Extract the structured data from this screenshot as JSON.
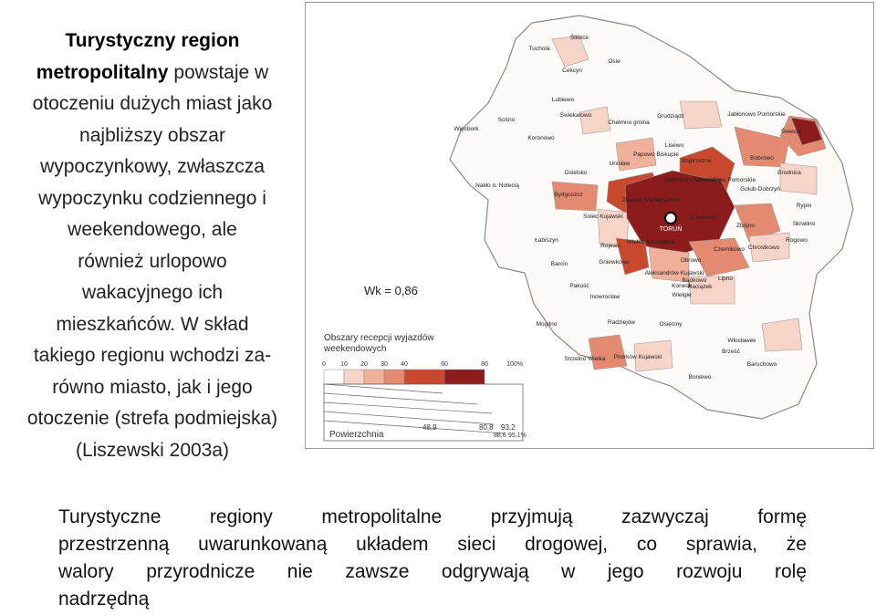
{
  "left_text": {
    "bold": [
      "Turystyczny region",
      "metropolitalny"
    ],
    "lines": [
      " powstaje w",
      "otoczeniu dużych miast jako",
      "najbliższy obszar",
      "wypoczynkowy, zwłaszcza",
      "wypoczynku codziennego i",
      "weekendowego, ale",
      "również urlopowo",
      "wakacyjnego ich",
      "mieszkańców. W skład",
      "takiego regionu wchodzi za-",
      "równo miasto, jak i jego",
      "otoczenie (strefa podmiejska)",
      "(Liszewski 2003a)"
    ]
  },
  "map": {
    "wk_label": "Wk = 0,86",
    "legend_title": [
      "Obszary recepcji wyjazdów",
      "weekendowych"
    ],
    "legend_ticks": [
      "0",
      "10",
      "20",
      "30",
      "40",
      "60",
      "80",
      "100%"
    ],
    "legend_colors": [
      "#ffffff",
      "#f6d5c8",
      "#f0b09a",
      "#e48a70",
      "#c9492f",
      "#8c1c1c"
    ],
    "legend_values": [
      "48,9",
      "80,8",
      "93,2",
      "88,6",
      "95,1%"
    ],
    "legend_bottom": "Powierzchnia",
    "city_label": "TORUŃ",
    "places": [
      "Śliwice",
      "Tuchola",
      "Osie",
      "Cekcyn",
      "Lubiewo",
      "Świekatowo",
      "Sośno",
      "Więcbork",
      "Koronowo",
      "Chełmno gmina",
      "Grudziądz",
      "Jabłonowo Pomorskie",
      "Świecie",
      "Bobrowo",
      "Brodnica",
      "Lisewo",
      "Papowo Biskupie",
      "Unisław",
      "Wąbrzeźno",
      "Osielsko",
      "Dąbrowa Chełmińska",
      "Kowalewo Pomorskie",
      "Golub-Dobrzyń",
      "Nakło n. Notecią",
      "Bydgoszcz",
      "Zławieś Wielka",
      "Łysomice",
      "Rypin",
      "Solec Kujawski",
      "Ciechocin",
      "Zbójno",
      "Skrwilno",
      "Łabiszyn",
      "Rojewo",
      "Wielka Nieszawka",
      "Czernikowo",
      "Rogowo",
      "Chrostkowo",
      "Gniewkowo",
      "Obrowo",
      "Barcin",
      "Aleksandrów Kujawski",
      "Bądkowo",
      "Raciążek",
      "Pakość",
      "Koneck",
      "Lipno",
      "Inowrocław",
      "Wielgie",
      "Radziejów",
      "Mogilno",
      "Osięciny",
      "Włocławek",
      "Brześć",
      "Strzelno Wielka",
      "Piotrków Kujawski",
      "Baruchowo",
      "Boniewo"
    ]
  },
  "bottom_text": {
    "lines": [
      "Turystyczne regiony metropolitalne przyjmują zazwyczaj formę",
      "przestrzenną uwarunkowaną układem sieci drogowej, co sprawia, że",
      "walory przyrodnicze nie zawsze odgrywają w jego rozwoju rolę",
      "nadrzędną"
    ]
  }
}
